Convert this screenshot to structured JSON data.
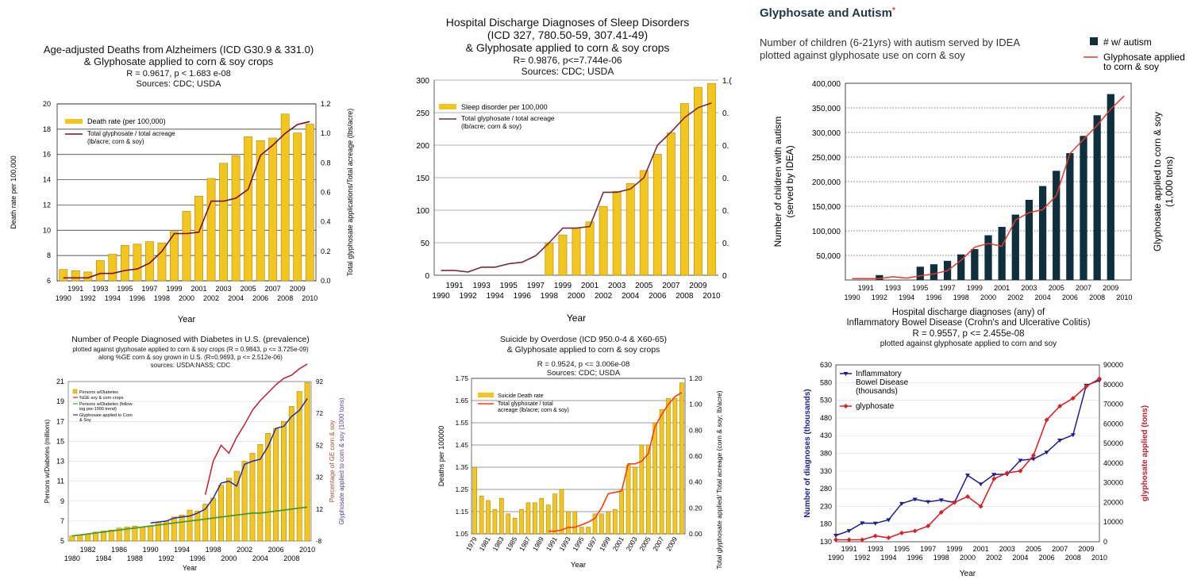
{
  "chart_data": [
    {
      "id": "alz",
      "type": "bar",
      "title": "Age-adjusted Deaths from Alzheimers (ICD G30.9 & 331.0)\n& Glyphosate applied to corn & soy crops",
      "stats": "R = 0.9617, p < 1.683 e-08",
      "sources": "Sources: CDC; USDA",
      "xlabel": "Year",
      "ylabel": "Death rate  per 100,000",
      "y2label": "Total glyphosate applications/Total acreage (lbs/acre)",
      "ylim": [
        6,
        20
      ],
      "y2lim": [
        0,
        1.2
      ],
      "yticks": [
        "6",
        "8",
        "10",
        "12",
        "14",
        "16",
        "18",
        "20"
      ],
      "y2ticks": [
        "0.0",
        "0.2",
        "0.4",
        "0.6",
        "0.8",
        "1.0",
        "1.2"
      ],
      "x_top": [
        "1991",
        "1993",
        "1995",
        "1997",
        "1999",
        "2001",
        "2003",
        "2005",
        "2007",
        "2009"
      ],
      "x_bot": [
        "1990",
        "1992",
        "1994",
        "1996",
        "1998",
        "2000",
        "2002",
        "2004",
        "2006",
        "2008",
        "2010"
      ],
      "categories": [
        1990,
        1991,
        1992,
        1993,
        1994,
        1995,
        1996,
        1997,
        1998,
        1999,
        2000,
        2001,
        2002,
        2003,
        2004,
        2005,
        2006,
        2007,
        2008,
        2009,
        2010
      ],
      "series": [
        {
          "name": "Death rate (per 100,000)",
          "kind": "bar",
          "values": [
            6.9,
            6.8,
            6.7,
            7.6,
            8.1,
            8.8,
            8.9,
            9.1,
            9.0,
            9.9,
            11.5,
            12.7,
            14.1,
            15.3,
            15.9,
            17.4,
            17.1,
            17.3,
            19.2,
            17.7,
            18.4
          ]
        },
        {
          "name": "Total glyphosate / total acreage\n(lb/acre; corn & soy)",
          "kind": "line",
          "axis": "right",
          "values": [
            0.02,
            0.02,
            0.02,
            0.05,
            0.05,
            0.07,
            0.08,
            0.12,
            0.2,
            0.32,
            0.32,
            0.33,
            0.54,
            0.54,
            0.56,
            0.62,
            0.85,
            0.92,
            1.0,
            1.06,
            1.08
          ]
        }
      ],
      "colors": {
        "bar": "#f2c61f",
        "line": "#7a0f20"
      }
    },
    {
      "id": "sleep",
      "type": "bar",
      "title": "Hospital Discharge Diagnoses of Sleep Disorders\n(ICD 327, 780.50-59, 307.41-49)\n& Glyphosate applied to corn & soy crops",
      "stats": "R= 0.9876, p<=7.744e-06",
      "sources": "Sources: CDC; USDA",
      "xlabel": "Year",
      "ylim": [
        0,
        300
      ],
      "yticks": [
        "0",
        "50",
        "100",
        "150",
        "200",
        "250",
        "300"
      ],
      "y2ticks": [
        "0",
        "0.",
        "0.",
        "0.",
        "0.",
        "0.",
        "1.("
      ],
      "x_top": [
        "1991",
        "1993",
        "1995",
        "1997",
        "1999",
        "2001",
        "2003",
        "2005",
        "2007",
        "2009"
      ],
      "x_bot": [
        "1990",
        "1992",
        "1994",
        "1996",
        "1998",
        "2000",
        "2002",
        "2004",
        "2006",
        "2008",
        "2010"
      ],
      "categories": [
        1990,
        1991,
        1992,
        1993,
        1994,
        1995,
        1996,
        1997,
        1998,
        1999,
        2000,
        2001,
        2002,
        2003,
        2004,
        2005,
        2006,
        2007,
        2008,
        2009,
        2010
      ],
      "series": [
        {
          "name": "Sleep disorder per 100,000",
          "kind": "bar",
          "values": [
            null,
            null,
            null,
            null,
            null,
            null,
            null,
            null,
            50,
            62,
            73,
            82,
            106,
            129,
            141,
            161,
            186,
            219,
            264,
            289,
            295
          ]
        },
        {
          "name": "Total glyphosate / total acreage\n(lb/acre; corn & soy)",
          "kind": "line",
          "axis": "right",
          "values": [
            0.03,
            0.03,
            0.02,
            0.05,
            0.05,
            0.07,
            0.08,
            0.12,
            0.2,
            0.29,
            0.29,
            0.3,
            0.51,
            0.51,
            0.53,
            0.6,
            0.8,
            0.88,
            0.97,
            1.03,
            1.06
          ]
        }
      ],
      "colors": {
        "bar": "#f2c61f",
        "line": "#7a2a3a"
      }
    },
    {
      "id": "autism",
      "type": "bar",
      "title": "Glyphosate and Autism",
      "title_mark": "*",
      "subtitle": "Number of children (6-21yrs) with autism served by IDEA\nplotted against glyphosate use on corn & soy",
      "ylabel": "Number of children with autism\n(served by IDEA)",
      "y2label": "Glyphosate applied to corn & soy\n(1,000 tons)",
      "ylim": [
        0,
        400000
      ],
      "yticks": [
        "50,000",
        "100,000",
        "150,000",
        "200,000",
        "250,000",
        "300,000",
        "350,000",
        "400,000"
      ],
      "x_top": [
        "1991",
        "1993",
        "1995",
        "1997",
        "1999",
        "2001",
        "2003",
        "2005",
        "2007",
        "2009"
      ],
      "x_bot": [
        "1990",
        "1992",
        "1994",
        "1996",
        "1998",
        "2000",
        "2002",
        "2004",
        "2006",
        "2008",
        "2010"
      ],
      "categories": [
        1990,
        1991,
        1992,
        1993,
        1994,
        1995,
        1996,
        1997,
        1998,
        1999,
        2000,
        2001,
        2002,
        2003,
        2004,
        2005,
        2006,
        2007,
        2008,
        2009,
        2010
      ],
      "series": [
        {
          "name": "# w/ autism",
          "kind": "bar",
          "values": [
            null,
            null,
            10000,
            null,
            null,
            27000,
            32000,
            39000,
            52000,
            63000,
            91000,
            108000,
            133000,
            163000,
            191000,
            222000,
            258000,
            293000,
            335000,
            378000,
            null
          ]
        },
        {
          "name": "Glyphosate applied\nto corn & soy",
          "kind": "line",
          "axis": "right",
          "values": [
            3,
            3,
            3,
            7,
            4,
            9,
            13,
            20,
            42,
            70,
            78,
            72,
            128,
            144,
            150,
            180,
            270,
            300,
            330,
            365,
            393
          ]
        }
      ],
      "colors": {
        "bar": "#0f2f3c",
        "line": "#e23a2e",
        "accent": "#e23a2e"
      }
    },
    {
      "id": "diabetes",
      "type": "bar",
      "title": "Number of People Diagnosed with Diabetes in U.S. (prevalence)",
      "subtitle": "plotted against glyphosate applied to corn & soy crops (R = 0.9843, p <= 3.725e-09)\nalong %GE corn & soy grown in U.S. (R=0.9693, p <= 2.512e-06)\nsources: USDA:NASS; CDC",
      "xlabel": "Year",
      "ylabel": "Persons w/Diabetes (millions)",
      "y2label": "Percentage of GE corn & soy",
      "y3label": "Glyphosate applied to corn & soy (1000 tons)",
      "ylim": [
        5,
        21
      ],
      "yticks": [
        "5",
        "7",
        "9",
        "11",
        "13",
        "15",
        "17",
        "19",
        "21"
      ],
      "y2ticks": [
        "-8",
        "12",
        "32",
        "52",
        "72",
        "92"
      ],
      "x_top": [
        "1982",
        "1986",
        "1990",
        "1994",
        "1998",
        "2002",
        "2006",
        "2010"
      ],
      "x_bot": [
        "1980",
        "1984",
        "1988",
        "1992",
        "1996",
        "2000",
        "2004",
        "2008"
      ],
      "categories": [
        1980,
        1981,
        1982,
        1983,
        1984,
        1985,
        1986,
        1987,
        1988,
        1989,
        1990,
        1991,
        1992,
        1993,
        1994,
        1995,
        1996,
        1997,
        1998,
        1999,
        2000,
        2001,
        2002,
        2003,
        2004,
        2005,
        2006,
        2007,
        2008,
        2009,
        2010
      ],
      "series": [
        {
          "name": "Persons w/Diabetes",
          "kind": "bar",
          "values": [
            5.5,
            5.6,
            5.7,
            5.9,
            6.0,
            6.1,
            6.3,
            6.4,
            6.5,
            6.4,
            6.5,
            6.9,
            7.0,
            7.4,
            7.6,
            8.1,
            8.0,
            8.7,
            9.3,
            10.6,
            11.3,
            12.0,
            13.0,
            13.8,
            14.7,
            15.8,
            16.3,
            17.0,
            18.5,
            20.0,
            20.9
          ]
        },
        {
          "name": "%GE soy & corn crops",
          "kind": "line",
          "axis": "right",
          "values": [
            null,
            null,
            null,
            null,
            null,
            null,
            null,
            null,
            null,
            null,
            null,
            null,
            null,
            null,
            null,
            null,
            null,
            21,
            42,
            52,
            47,
            57,
            65,
            74,
            80,
            85,
            90,
            94,
            96,
            100,
            103
          ]
        },
        {
          "name": "Persons w/Diabetes (follow-\ning pre-1990 trend)",
          "kind": "line",
          "values": [
            5.5,
            5.6,
            5.7,
            5.8,
            5.9,
            6.0,
            6.1,
            6.2,
            6.3,
            6.4,
            6.5,
            6.6,
            6.7,
            6.8,
            6.9,
            7.0,
            7.1,
            7.2,
            7.3,
            7.4,
            7.5,
            7.6,
            7.7,
            7.8,
            7.8,
            7.9,
            8.0,
            8.1,
            8.2,
            8.3,
            8.4
          ]
        },
        {
          "name": "Glyphosate applied to Corn\n& Soy",
          "kind": "line",
          "axis": "right",
          "values": [
            null,
            null,
            null,
            null,
            null,
            null,
            null,
            null,
            null,
            null,
            6.8,
            6.9,
            7.0,
            7.3,
            7.4,
            7.5,
            7.8,
            8.2,
            9.3,
            10.8,
            11.0,
            10.5,
            12.7,
            13.0,
            13.2,
            14.5,
            16.3,
            16.5,
            17.5,
            18.1,
            19.3
          ]
        }
      ],
      "colors": {
        "bar": "#f2c61f",
        "ge": "#c0202a",
        "trend": "#4f9a2a",
        "glyph": "#2a2aa8"
      }
    },
    {
      "id": "suicide",
      "type": "bar",
      "title": "Suicide by Overdose (ICD 950.0-4 & X60-65)\n& Glyphosate applied to corn & soy crops",
      "stats": "R = 0.9524, p <= 3.006e-08",
      "sources": "Sources: CDC; USDA",
      "xlabel": "Year",
      "ylabel": "Deaths per 100000",
      "y2label": "Total glyphosate applied/ Total acreage (corn & soy; lb/acre)",
      "ylim": [
        1.05,
        1.75
      ],
      "yticks": [
        "1.05",
        "1.15",
        "1.25",
        "1.35",
        "1.45",
        "1.55",
        "1.65",
        "1.75"
      ],
      "y2ticks": [
        "0.00",
        "0.20",
        "0.40",
        "0.60",
        "0.80",
        "1.00",
        "1.20"
      ],
      "x_labels": [
        "1979",
        "1981",
        "1983",
        "1985",
        "1987",
        "1989",
        "1991",
        "1993",
        "1995",
        "1997",
        "1999",
        "2001",
        "2003",
        "2005",
        "2007",
        "2009"
      ],
      "categories": [
        1979,
        1980,
        1981,
        1982,
        1983,
        1984,
        1985,
        1986,
        1987,
        1988,
        1989,
        1990,
        1991,
        1992,
        1993,
        1994,
        1995,
        1996,
        1997,
        1998,
        1999,
        2000,
        2001,
        2002,
        2003,
        2004,
        2005,
        2006,
        2007,
        2008,
        2009,
        2010
      ],
      "series": [
        {
          "name": "Suicide Death rate",
          "kind": "bar",
          "values": [
            1.35,
            1.22,
            1.2,
            1.16,
            1.21,
            1.14,
            1.12,
            1.16,
            1.19,
            1.19,
            1.21,
            1.18,
            1.23,
            1.25,
            1.15,
            1.15,
            1.08,
            1.08,
            1.14,
            1.14,
            1.15,
            1.16,
            1.25,
            1.36,
            1.35,
            1.45,
            1.45,
            1.55,
            1.61,
            1.66,
            1.66,
            1.73
          ]
        },
        {
          "name": "Total glyphosate / total\nacreage (lb/acre; corn & soy)",
          "kind": "line",
          "axis": "right",
          "values": [
            null,
            null,
            null,
            null,
            null,
            null,
            null,
            null,
            null,
            null,
            null,
            0.02,
            0.02,
            0.03,
            0.05,
            0.05,
            0.07,
            0.09,
            0.12,
            0.2,
            0.31,
            0.32,
            0.33,
            0.54,
            0.54,
            0.56,
            0.62,
            0.83,
            0.92,
            1.0,
            1.06,
            1.09
          ]
        }
      ],
      "colors": {
        "bar": "#f2c61f",
        "line": "#ff3b10"
      }
    },
    {
      "id": "ibd",
      "type": "line",
      "title": "Hospital discharge diagnoses (any) of\nInflammatory Bowel Disease (Crohn's and Ulcerative Colitis)",
      "stats": "R = 0.9557, p <= 2.455e-08",
      "subtitle": "plotted against glyphosate applied to corn and soy",
      "xlabel": "Year",
      "ylabel": "Number of diagnoses (thousands)",
      "y2label": "glyphosate applied (tons)",
      "ylim": [
        130,
        630
      ],
      "y2lim": [
        0,
        90000
      ],
      "yticks": [
        "130",
        "180",
        "230",
        "280",
        "330",
        "380",
        "430",
        "480",
        "530",
        "580",
        "630"
      ],
      "y2ticks": [
        "0",
        "10000",
        "20000",
        "30000",
        "40000",
        "50000",
        "60000",
        "70000",
        "80000",
        "90000"
      ],
      "x_top": [
        "1991",
        "1993",
        "1995",
        "1997",
        "1999",
        "2001",
        "2003",
        "2005",
        "2007",
        "2009"
      ],
      "x_bot": [
        "1990",
        "1992",
        "1994",
        "1996",
        "1998",
        "2000",
        "2002",
        "2004",
        "2006",
        "2008",
        "2010"
      ],
      "categories": [
        1990,
        1991,
        1992,
        1993,
        1994,
        1995,
        1996,
        1997,
        1998,
        1999,
        2000,
        2001,
        2002,
        2003,
        2004,
        2005,
        2006,
        2007,
        2008,
        2009,
        2010
      ],
      "series": [
        {
          "name": "Inflammatory\nBowel Disease\n(thousands)",
          "kind": "line",
          "values": [
            148,
            161,
            183,
            182,
            192,
            238,
            250,
            243,
            248,
            241,
            318,
            293,
            320,
            321,
            360,
            364,
            383,
            417,
            432,
            572,
            586
          ]
        },
        {
          "name": "glyphosate",
          "kind": "line",
          "axis": "right",
          "values": [
            1000,
            1000,
            1000,
            3000,
            2000,
            4500,
            5500,
            8000,
            15000,
            20000,
            23000,
            18000,
            32000,
            35000,
            36000,
            44000,
            62000,
            69000,
            73000,
            79000,
            83000
          ]
        }
      ],
      "colors": {
        "ibd": "#1f1f8c",
        "glyph": "#d8222a"
      }
    }
  ]
}
